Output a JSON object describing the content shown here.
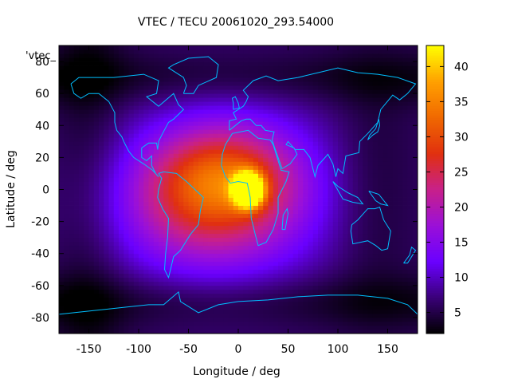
{
  "chart_data": {
    "type": "heatmap",
    "title": "VTEC / TECU 20061020_293.54000",
    "xlabel": "Longitude / deg",
    "ylabel": "Latitude / deg",
    "series_key": "'vtec_",
    "xlim": [
      -180,
      180
    ],
    "ylim": [
      -90,
      90
    ],
    "x_ticks": [
      -150,
      -100,
      -50,
      0,
      50,
      100,
      150
    ],
    "y_ticks": [
      80,
      60,
      40,
      20,
      0,
      -20,
      -40,
      -60,
      -80
    ],
    "colorbar": {
      "range": [
        2,
        43
      ],
      "ticks": [
        5,
        10,
        15,
        20,
        25,
        30,
        35,
        40
      ],
      "palette": [
        "#000000",
        "#3a0078",
        "#6a00ff",
        "#9a10d8",
        "#c8208a",
        "#e03010",
        "#f06800",
        "#ffa000",
        "#ffff00"
      ]
    },
    "tec_blobs": [
      {
        "lon": 10,
        "lat": 0,
        "peak": 41,
        "sigma_lon": 10,
        "sigma_lat": 7
      },
      {
        "lon": -15,
        "lat": 10,
        "peak": 14,
        "sigma_lon": 50,
        "sigma_lat": 22
      },
      {
        "lon": -30,
        "lat": -12,
        "peak": 12,
        "sigma_lon": 65,
        "sigma_lat": 28
      },
      {
        "lon": -10,
        "lat": 0,
        "peak": 6,
        "sigma_lon": 85,
        "sigma_lat": 45
      }
    ],
    "background_tec": 6,
    "coastline_color": "#00bfff"
  }
}
